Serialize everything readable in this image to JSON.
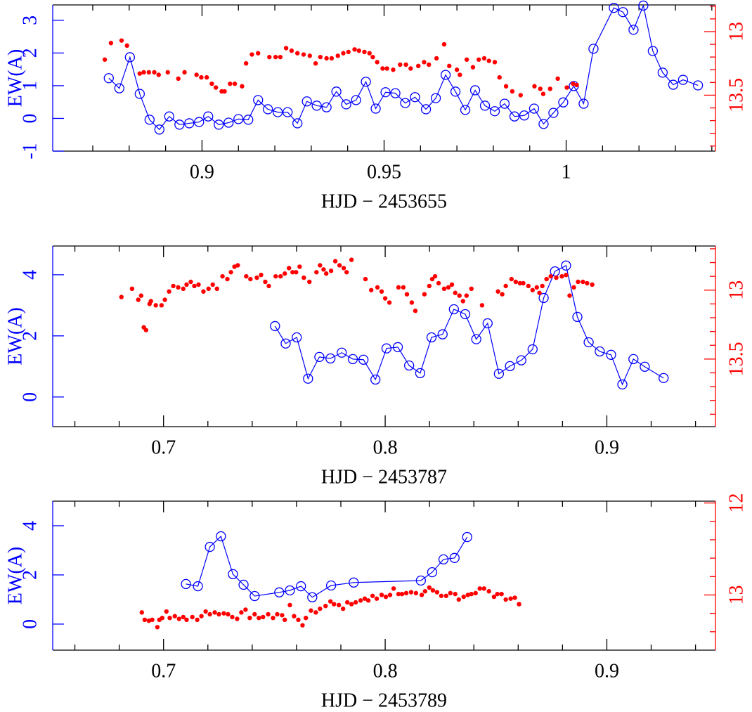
{
  "chart_data": [
    {
      "type": "line",
      "xlabel": "HJD − 2453655",
      "ylabel": "EW(A)",
      "xlim": [
        0.859,
        1.041
      ],
      "xticks": [
        0.9,
        0.95,
        1
      ],
      "xminorticks": [
        0.87,
        0.88,
        0.89,
        0.91,
        0.92,
        0.93,
        0.94,
        0.96,
        0.97,
        0.98,
        0.99,
        1.01,
        1.02,
        1.03,
        1.04
      ],
      "ylim": [
        -1,
        3.47
      ],
      "yticks": [
        -1,
        0,
        1,
        2,
        3
      ],
      "y2lim": [
        13.94,
        12.79
      ],
      "y2ticks": [
        13,
        13.5
      ],
      "y2minorticks": [
        12.8,
        12.9,
        13.1,
        13.2,
        13.3,
        13.4,
        13.6,
        13.7,
        13.8,
        13.9
      ],
      "series": [
        {
          "color": "#0000ff",
          "marker": "circle",
          "line": true,
          "x": [
            0.8744,
            0.8773,
            0.8802,
            0.8829,
            0.8856,
            0.8883,
            0.891,
            0.8938,
            0.8965,
            0.8992,
            0.9017,
            0.9046,
            0.9073,
            0.91,
            0.9127,
            0.9154,
            0.9181,
            0.9208,
            0.9235,
            0.9262,
            0.9288,
            0.9315,
            0.9342,
            0.9369,
            0.9396,
            0.9423,
            0.945,
            0.9477,
            0.9504,
            0.9531,
            0.9558,
            0.9585,
            0.9615,
            0.9642,
            0.9669,
            0.9696,
            0.9723,
            0.975,
            0.9777,
            0.9804,
            0.9831,
            0.9858,
            0.9885,
            0.9912,
            0.9938,
            0.9965,
            0.9992,
            1.0021,
            1.0048,
            1.0075,
            1.0131,
            1.0156,
            1.0185,
            1.0212,
            1.0238,
            1.0265,
            1.0294,
            1.0321,
            1.0362
          ],
          "values": [
            1.23,
            0.92,
            1.87,
            0.75,
            -0.04,
            -0.34,
            0.06,
            -0.19,
            -0.15,
            -0.11,
            0.06,
            -0.19,
            -0.13,
            -0.02,
            -0.04,
            0.56,
            0.28,
            0.19,
            0.19,
            -0.15,
            0.52,
            0.39,
            0.34,
            0.82,
            0.43,
            0.56,
            1.12,
            0.3,
            0.8,
            0.77,
            0.47,
            0.65,
            0.28,
            0.62,
            1.33,
            0.82,
            0.26,
            0.86,
            0.39,
            0.22,
            0.45,
            0.06,
            0.09,
            0.3,
            -0.17,
            0.17,
            0.49,
            0.99,
            0.45,
            2.13,
            3.38,
            3.25,
            2.71,
            3.45,
            2.06,
            1.4,
            1.03,
            1.18,
            1.01
          ]
        },
        {
          "color": "#ff0000",
          "marker": "dot",
          "line": false,
          "axis": "y2",
          "x": [
            0.8733,
            0.875,
            0.8779,
            0.8794,
            0.8829,
            0.884,
            0.8854,
            0.8869,
            0.8881,
            0.8906,
            0.8935,
            0.8952,
            0.8985,
            0.8998,
            0.9013,
            0.9027,
            0.9038,
            0.9054,
            0.9062,
            0.9077,
            0.909,
            0.911,
            0.9121,
            0.9137,
            0.9154,
            0.9185,
            0.9202,
            0.9215,
            0.9231,
            0.9246,
            0.9262,
            0.9279,
            0.9296,
            0.9312,
            0.9325,
            0.9342,
            0.9356,
            0.9373,
            0.9388,
            0.9402,
            0.9419,
            0.9431,
            0.9446,
            0.946,
            0.9469,
            0.9481,
            0.9496,
            0.9508,
            0.9525,
            0.9544,
            0.956,
            0.9573,
            0.9594,
            0.961,
            0.9623,
            0.9644,
            0.9665,
            0.9679,
            0.97,
            0.9708,
            0.9727,
            0.9744,
            0.976,
            0.9775,
            0.9788,
            0.9804,
            0.9817,
            0.9835,
            0.9852,
            0.9875,
            0.9913,
            0.9929,
            0.9937,
            0.9956,
            0.9977,
            1.0002,
            1.0019,
            1.0029
          ],
          "values": [
            13.22,
            13.09,
            13.07,
            13.11,
            13.33,
            13.32,
            13.32,
            13.32,
            13.34,
            13.32,
            13.37,
            13.32,
            13.34,
            13.36,
            13.36,
            13.41,
            13.44,
            13.47,
            13.47,
            13.41,
            13.41,
            13.43,
            13.25,
            13.18,
            13.17,
            13.2,
            13.2,
            13.2,
            13.13,
            13.15,
            13.17,
            13.18,
            13.19,
            13.25,
            13.2,
            13.21,
            13.21,
            13.19,
            13.17,
            13.16,
            13.14,
            13.15,
            13.16,
            13.17,
            13.2,
            13.24,
            13.29,
            13.29,
            13.3,
            13.26,
            13.26,
            13.29,
            13.27,
            13.24,
            13.26,
            13.21,
            13.1,
            13.27,
            13.3,
            13.34,
            13.22,
            13.28,
            13.22,
            13.21,
            13.23,
            13.24,
            13.36,
            13.43,
            13.47,
            13.5,
            13.43,
            13.45,
            13.49,
            13.45,
            13.37,
            13.44,
            13.41,
            13.42
          ]
        }
      ]
    },
    {
      "type": "line",
      "xlabel": "HJD − 2453787",
      "ylabel": "EW(A)",
      "xlim": [
        0.65,
        0.949
      ],
      "xticks": [
        0.7,
        0.8,
        0.9
      ],
      "xminorticks": [
        0.66,
        0.68,
        0.72,
        0.74,
        0.76,
        0.78,
        0.82,
        0.84,
        0.86,
        0.88,
        0.92,
        0.94
      ],
      "ylim": [
        -0.97,
        4.94
      ],
      "yticks": [
        0,
        2,
        4
      ],
      "y2lim": [
        13.99,
        12.68
      ],
      "y2ticks": [
        13,
        13.5
      ],
      "y2minorticks": [
        12.7,
        12.8,
        12.9,
        13.1,
        13.2,
        13.3,
        13.4,
        13.6,
        13.7,
        13.8,
        13.9
      ],
      "series": [
        {
          "color": "#0000ff",
          "marker": "circle",
          "line": true,
          "x": [
            0.7503,
            0.7551,
            0.7601,
            0.7652,
            0.7703,
            0.7753,
            0.7804,
            0.7854,
            0.7902,
            0.7956,
            0.8006,
            0.8057,
            0.8108,
            0.8158,
            0.8209,
            0.8259,
            0.831,
            0.8361,
            0.8411,
            0.8462,
            0.8513,
            0.8563,
            0.8614,
            0.8665,
            0.8715,
            0.8766,
            0.8816,
            0.8867,
            0.8918,
            0.8968,
            0.9019,
            0.907,
            0.912,
            0.9171,
            0.9256
          ],
          "values": [
            2.32,
            1.75,
            1.95,
            0.6,
            1.31,
            1.26,
            1.45,
            1.24,
            1.22,
            0.57,
            1.59,
            1.63,
            1.03,
            0.78,
            1.95,
            2.05,
            2.87,
            2.71,
            1.89,
            2.41,
            0.76,
            1.01,
            1.2,
            1.56,
            3.24,
            4.11,
            4.3,
            2.62,
            1.79,
            1.49,
            1.38,
            0.41,
            1.24,
            0.99,
            0.62
          ]
        },
        {
          "color": "#ff0000",
          "marker": "dot",
          "line": false,
          "axis": "y2",
          "x": [
            0.681,
            0.6858,
            0.6886,
            0.6899,
            0.6911,
            0.6921,
            0.6937,
            0.6943,
            0.6965,
            0.6991,
            0.7006,
            0.7025,
            0.7044,
            0.7066,
            0.7089,
            0.7104,
            0.7123,
            0.7139,
            0.7158,
            0.718,
            0.7203,
            0.7222,
            0.7241,
            0.7266,
            0.7288,
            0.7304,
            0.732,
            0.7335,
            0.7373,
            0.7392,
            0.7421,
            0.744,
            0.7459,
            0.7475,
            0.7506,
            0.7528,
            0.7547,
            0.7566,
            0.7582,
            0.7598,
            0.7614,
            0.7633,
            0.7658,
            0.769,
            0.7706,
            0.7722,
            0.7734,
            0.7756,
            0.7775,
            0.7794,
            0.7813,
            0.7826,
            0.7848,
            0.7911,
            0.7937,
            0.7965,
            0.7984,
            0.8,
            0.8019,
            0.806,
            0.8082,
            0.8098,
            0.812,
            0.8136,
            0.8177,
            0.8199,
            0.8212,
            0.8225,
            0.8241,
            0.8266,
            0.8285,
            0.8301,
            0.8316,
            0.8335,
            0.8351,
            0.8367,
            0.8389,
            0.8437,
            0.8509,
            0.8528,
            0.8544,
            0.857,
            0.8589,
            0.8608,
            0.8623,
            0.8646,
            0.8665,
            0.8684,
            0.8696,
            0.8709,
            0.8728,
            0.8747,
            0.8772,
            0.8797,
            0.8816,
            0.8832,
            0.8851,
            0.887,
            0.8892,
            0.8911,
            0.8934
          ],
          "values": [
            13.05,
            12.99,
            13.07,
            13.04,
            13.27,
            13.29,
            13.1,
            13.08,
            13.11,
            13.11,
            13.07,
            13.01,
            12.97,
            12.98,
            12.99,
            12.96,
            12.94,
            12.97,
            12.96,
            13.01,
            12.99,
            12.96,
            12.99,
            12.9,
            12.92,
            12.87,
            12.83,
            12.82,
            12.9,
            12.92,
            12.91,
            12.89,
            12.94,
            12.97,
            12.9,
            12.9,
            12.88,
            12.84,
            12.87,
            12.87,
            12.83,
            12.91,
            12.94,
            12.87,
            12.82,
            12.85,
            12.88,
            12.86,
            12.79,
            12.82,
            12.84,
            12.87,
            12.78,
            12.92,
            13.0,
            12.98,
            13.01,
            13.06,
            13.09,
            12.98,
            12.98,
            13.03,
            13.09,
            13.15,
            13.03,
            12.97,
            12.92,
            12.9,
            12.95,
            12.99,
            12.98,
            12.96,
            13.02,
            13.04,
            13.08,
            13.04,
            12.99,
            13.11,
            13.01,
            13.03,
            12.97,
            12.92,
            12.94,
            12.95,
            12.95,
            12.97,
            13.0,
            12.98,
            13.02,
            12.97,
            12.92,
            12.9,
            12.91,
            12.9,
            12.89,
            13.04,
            12.98,
            12.94,
            12.94,
            12.95,
            12.96
          ]
        }
      ]
    },
    {
      "type": "line",
      "xlabel": "HJD − 2453789",
      "ylabel": "EW(A)",
      "xlim": [
        0.65,
        0.949
      ],
      "xticks": [
        0.7,
        0.8,
        0.9
      ],
      "xminorticks": [
        0.66,
        0.68,
        0.72,
        0.74,
        0.76,
        0.78,
        0.82,
        0.84,
        0.86,
        0.88,
        0.92,
        0.94
      ],
      "ylim": [
        -1.06,
        5.0
      ],
      "yticks": [
        0,
        2,
        4
      ],
      "y2lim": [
        13.6,
        11.98
      ],
      "y2ticks": [
        12,
        13
      ],
      "y2minorticks": [
        12.2,
        12.4,
        12.6,
        12.8,
        13.2,
        13.4
      ],
      "series": [
        {
          "color": "#0000ff",
          "marker": "circle",
          "line": true,
          "x": [
            0.7101,
            0.7155,
            0.7209,
            0.7259,
            0.7313,
            0.7361,
            0.7411,
            0.7522,
            0.757,
            0.762,
            0.7671,
            0.7756,
            0.7858,
            0.8161,
            0.8212,
            0.8263,
            0.8313,
            0.837
          ],
          "values": [
            1.63,
            1.54,
            3.14,
            3.57,
            2.03,
            1.6,
            1.14,
            1.29,
            1.37,
            1.54,
            1.09,
            1.57,
            1.69,
            1.77,
            2.11,
            2.63,
            2.69,
            3.54
          ]
        },
        {
          "color": "#ff0000",
          "marker": "dot",
          "line": false,
          "axis": "y2",
          "x": [
            0.6902,
            0.6915,
            0.6934,
            0.6949,
            0.6972,
            0.6981,
            0.6994,
            0.7013,
            0.7028,
            0.7051,
            0.707,
            0.7089,
            0.7104,
            0.713,
            0.7152,
            0.7171,
            0.719,
            0.7209,
            0.7231,
            0.725,
            0.7272,
            0.7291,
            0.731,
            0.7332,
            0.7351,
            0.737,
            0.7389,
            0.7411,
            0.743,
            0.7449,
            0.7472,
            0.7494,
            0.7513,
            0.7535,
            0.7547,
            0.757,
            0.7589,
            0.7608,
            0.7627,
            0.7642,
            0.7665,
            0.7687,
            0.7706,
            0.7731,
            0.7753,
            0.7769,
            0.7791,
            0.781,
            0.7829,
            0.7848,
            0.7867,
            0.7889,
            0.7908,
            0.7924,
            0.7943,
            0.7962,
            0.7984,
            0.8003,
            0.8022,
            0.8038,
            0.806,
            0.8076,
            0.8095,
            0.8117,
            0.8139,
            0.8165,
            0.818,
            0.8199,
            0.8215,
            0.8234,
            0.8253,
            0.8275,
            0.8294,
            0.8316,
            0.8332,
            0.8354,
            0.8373,
            0.8389,
            0.8408,
            0.8427,
            0.8446,
            0.8468,
            0.8491,
            0.8506,
            0.8525,
            0.8544,
            0.8566,
            0.8585,
            0.8604
          ],
          "values": [
            13.19,
            13.27,
            13.28,
            13.27,
            13.35,
            13.27,
            13.25,
            13.18,
            13.25,
            13.23,
            13.26,
            13.24,
            13.27,
            13.24,
            13.27,
            13.23,
            13.18,
            13.21,
            13.19,
            13.21,
            13.2,
            13.21,
            13.24,
            13.26,
            13.19,
            13.16,
            13.25,
            13.21,
            13.25,
            13.24,
            13.21,
            13.25,
            13.21,
            13.22,
            13.27,
            13.11,
            13.23,
            13.27,
            13.33,
            13.25,
            13.17,
            13.19,
            13.15,
            13.12,
            13.07,
            13.1,
            13.11,
            13.15,
            13.08,
            13.1,
            13.08,
            13.06,
            13.04,
            13.06,
            13.01,
            13.04,
            13.0,
            13.02,
            13.0,
            12.93,
            12.99,
            12.99,
            12.98,
            12.97,
            12.98,
            13.0,
            12.96,
            12.92,
            12.95,
            12.97,
            13.01,
            13.01,
            12.98,
            12.99,
            13.05,
            13.02,
            13.0,
            12.99,
            12.98,
            12.93,
            12.93,
            12.96,
            13.02,
            12.99,
            12.99,
            13.05,
            13.04,
            13.03,
            13.1
          ]
        }
      ]
    }
  ]
}
